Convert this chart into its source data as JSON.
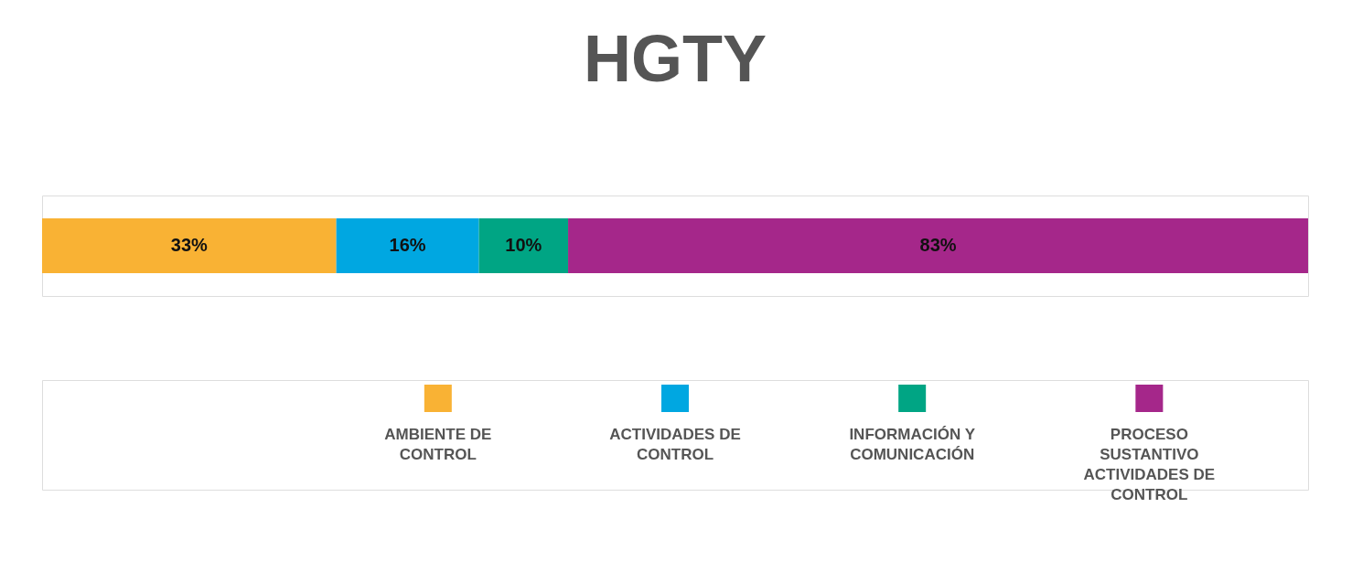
{
  "chart_data": {
    "type": "bar",
    "title": "HGTY",
    "categories": [
      null
    ],
    "stacked": true,
    "orientation": "horizontal",
    "legend": "bottom",
    "series": [
      {
        "name": "AMBIENTE DE CONTROL",
        "color": "#f9b234",
        "values": [
          33
        ],
        "value_labels": [
          "33%"
        ]
      },
      {
        "name": "ACTIVIDADES DE CONTROL",
        "color": "#00a7e1",
        "values": [
          16
        ],
        "value_labels": [
          "16%"
        ]
      },
      {
        "name": "INFORMACIÓN Y COMUNICACIÓN",
        "color": "#00a584",
        "values": [
          10
        ],
        "value_labels": [
          "10%"
        ]
      },
      {
        "name": "PROCESO SUSTANTIVO ACTIVIDADES DE CONTROL",
        "color": "#a5278a",
        "values": [
          83
        ],
        "value_labels": [
          "83%"
        ]
      }
    ]
  }
}
